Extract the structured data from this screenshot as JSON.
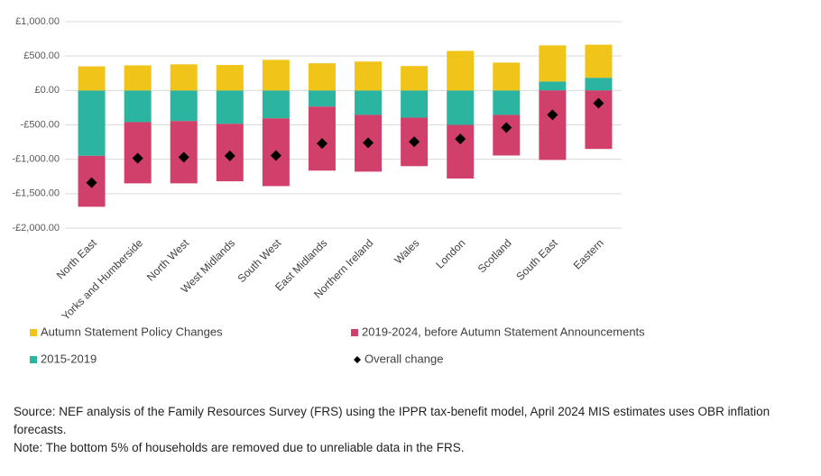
{
  "chart_data": {
    "type": "bar",
    "categories": [
      "North East",
      "Yorks and Humberside",
      "North West",
      "West Midlands",
      "South West",
      "East Midlands",
      "Northern Ireland",
      "Wales",
      "London",
      "Scotland",
      "South East",
      "Eastern"
    ],
    "series": [
      {
        "name": "2015-2019",
        "color": "#2bb5a0",
        "values": [
          -950,
          -460,
          -445,
          -485,
          -405,
          -235,
          -355,
          -395,
          -500,
          -355,
          130,
          185
        ]
      },
      {
        "name": "2019-2024, before Autumn Statement Announcements",
        "color": "#d0406a",
        "values": [
          -740,
          -890,
          -905,
          -835,
          -985,
          -930,
          -825,
          -705,
          -780,
          -590,
          -1010,
          -850
        ]
      },
      {
        "name": "Autumn Statement Policy Changes",
        "color": "#f0c419",
        "values": [
          350,
          365,
          380,
          370,
          445,
          395,
          420,
          355,
          575,
          405,
          525,
          480
        ]
      }
    ],
    "overall": {
      "name": "Overall change",
      "color": "#000000",
      "values": [
        -1340,
        -985,
        -970,
        -950,
        -945,
        -770,
        -760,
        -745,
        -705,
        -540,
        -355,
        -185
      ]
    },
    "ylim": [
      -2000,
      1000
    ],
    "yticks": [
      {
        "value": 1000,
        "label": "£1,000.00"
      },
      {
        "value": 500,
        "label": "£500.00"
      },
      {
        "value": 0,
        "label": "£0.00"
      },
      {
        "value": -500,
        "label": "-£500.00"
      },
      {
        "value": -1000,
        "label": "-£1,000.00"
      },
      {
        "value": -1500,
        "label": "-£1,500.00"
      },
      {
        "value": -2000,
        "label": "-£2,000.00"
      }
    ],
    "grid": true,
    "source": "Source: NEF analysis of the Family Resources Survey (FRS) using the IPPR tax-benefit model, April 2024 MIS estimates uses OBR inflation forecasts.",
    "note": "Note: The bottom 5% of households are removed due to unreliable data in the FRS."
  }
}
